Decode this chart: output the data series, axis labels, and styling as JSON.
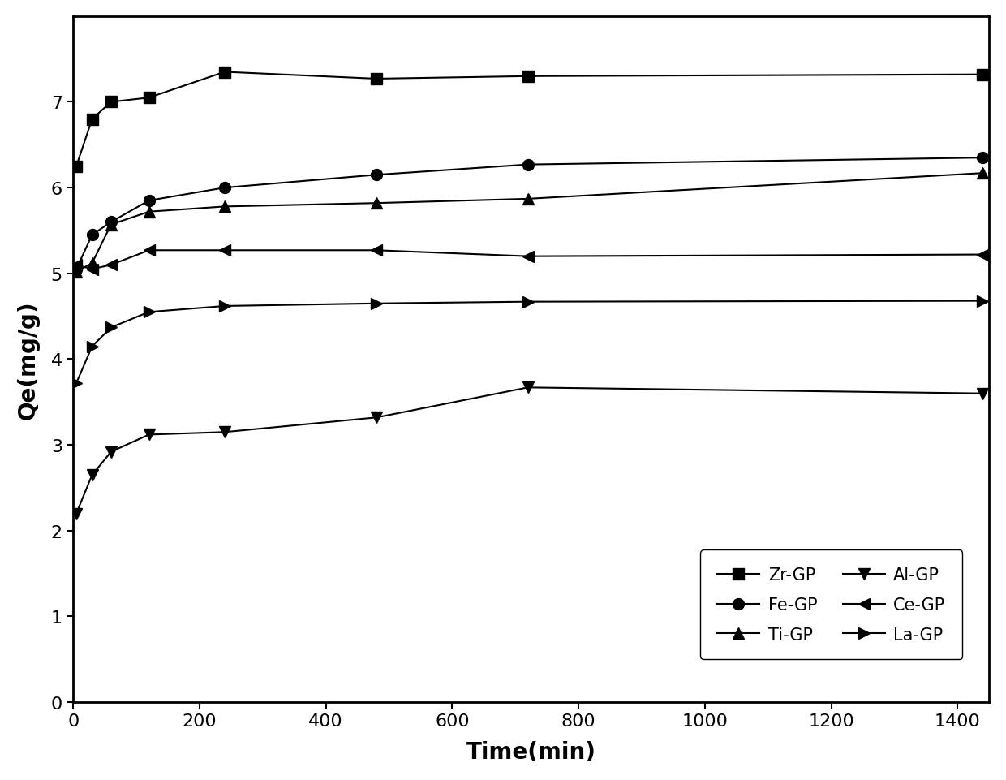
{
  "title": "",
  "xlabel": "Time(min)",
  "ylabel": "Qe(mg/g)",
  "xlim": [
    0,
    1450
  ],
  "ylim": [
    0,
    8
  ],
  "xticks": [
    0,
    200,
    400,
    600,
    800,
    1000,
    1200,
    1400
  ],
  "yticks": [
    0,
    1,
    2,
    3,
    4,
    5,
    6,
    7
  ],
  "series": [
    {
      "label": "Zr-GP",
      "marker": "s",
      "x": [
        5,
        30,
        60,
        120,
        240,
        480,
        720,
        1440
      ],
      "y": [
        6.25,
        6.8,
        7.0,
        7.05,
        7.35,
        7.27,
        7.3,
        7.32
      ]
    },
    {
      "label": "Fe-GP",
      "marker": "o",
      "x": [
        5,
        30,
        60,
        120,
        240,
        480,
        720,
        1440
      ],
      "y": [
        5.05,
        5.45,
        5.6,
        5.85,
        6.0,
        6.15,
        6.27,
        6.35
      ]
    },
    {
      "label": "Ti-GP",
      "marker": "^",
      "x": [
        5,
        30,
        60,
        120,
        240,
        480,
        720,
        1440
      ],
      "y": [
        5.02,
        5.12,
        5.57,
        5.72,
        5.78,
        5.82,
        5.87,
        6.17
      ]
    },
    {
      "label": "Al-GP",
      "marker": "v",
      "x": [
        5,
        30,
        60,
        120,
        240,
        480,
        720,
        1440
      ],
      "y": [
        2.2,
        2.65,
        2.92,
        3.12,
        3.15,
        3.32,
        3.67,
        3.6
      ]
    },
    {
      "label": "Ce-GP",
      "marker": "<",
      "x": [
        5,
        30,
        60,
        120,
        240,
        480,
        720,
        1440
      ],
      "y": [
        5.1,
        5.05,
        5.1,
        5.27,
        5.27,
        5.27,
        5.2,
        5.22
      ]
    },
    {
      "label": "La-GP",
      "marker": ">",
      "x": [
        5,
        30,
        60,
        120,
        240,
        480,
        720,
        1440
      ],
      "y": [
        3.72,
        4.15,
        4.37,
        4.55,
        4.62,
        4.65,
        4.67,
        4.68
      ]
    }
  ],
  "legend_order": [
    "Zr-GP",
    "Fe-GP",
    "Ti-GP",
    "Al-GP",
    "Ce-GP",
    "La-GP"
  ],
  "color": "#000000",
  "linewidth": 1.5,
  "markersize": 10,
  "legend_ncol": 2,
  "figsize": [
    12.4,
    9.62
  ],
  "dpi": 100
}
